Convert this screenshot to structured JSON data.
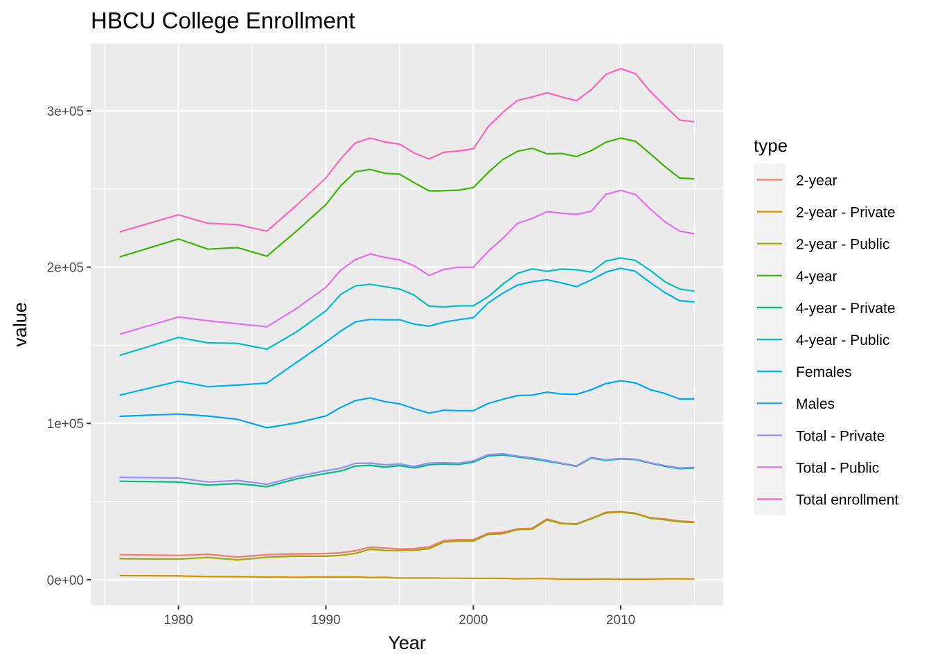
{
  "chart_data": {
    "type": "line",
    "title": "HBCU College Enrollment",
    "xlabel": "Year",
    "ylabel": "value",
    "xlim": [
      1974.05,
      2016.95
    ],
    "ylim": [
      -16500,
      343000
    ],
    "x_ticks": [
      1980,
      1990,
      2000,
      2010
    ],
    "x_tick_labels": [
      "1980",
      "1990",
      "2000",
      "2010"
    ],
    "x_minor_ticks": [
      1975,
      1985,
      1995,
      2005,
      2015
    ],
    "y_ticks": [
      0,
      100000,
      200000,
      300000
    ],
    "y_tick_labels": [
      "0e+00",
      "1e+05",
      "2e+05",
      "3e+05"
    ],
    "y_minor_ticks": [
      50000,
      150000,
      250000
    ],
    "grid": true,
    "legend": {
      "title": "type",
      "position": "right"
    },
    "x": [
      1976,
      1980,
      1982,
      1984,
      1986,
      1988,
      1990,
      1991,
      1992,
      1993,
      1994,
      1995,
      1996,
      1997,
      1998,
      1999,
      2000,
      2001,
      2002,
      2003,
      2004,
      2005,
      2006,
      2007,
      2008,
      2009,
      2010,
      2011,
      2012,
      2013,
      2014,
      2015
    ],
    "series": [
      {
        "name": "2-year",
        "color": "#F8766D",
        "values": [
          16000,
          15500,
          16200,
          14500,
          16000,
          16500,
          16700,
          17200,
          18500,
          20800,
          20200,
          19600,
          19800,
          20900,
          25000,
          25600,
          25500,
          29800,
          30200,
          32500,
          32900,
          38800,
          36100,
          35700,
          39200,
          43100,
          43500,
          42500,
          39600,
          38800,
          37500,
          37000
        ]
      },
      {
        "name": "2-year - Private",
        "color": "#D89000",
        "values": [
          2600,
          2400,
          2000,
          1900,
          1700,
          1500,
          1700,
          1700,
          1700,
          1400,
          1500,
          1000,
          1000,
          1100,
          900,
          900,
          800,
          800,
          800,
          500,
          600,
          600,
          300,
          300,
          300,
          400,
          300,
          300,
          300,
          500,
          500,
          400
        ]
      },
      {
        "name": "2-year - Public",
        "color": "#A3A500",
        "values": [
          13400,
          13100,
          14200,
          12600,
          14300,
          15000,
          15000,
          15500,
          16800,
          19400,
          18700,
          18600,
          18800,
          19800,
          24100,
          24700,
          24700,
          29000,
          29400,
          32000,
          32300,
          38200,
          35800,
          35400,
          38900,
          42700,
          43200,
          42200,
          39300,
          38300,
          37000,
          36600
        ]
      },
      {
        "name": "4-year",
        "color": "#39B600",
        "values": [
          206500,
          218000,
          211500,
          212500,
          207000,
          223000,
          240000,
          252000,
          261000,
          262500,
          260000,
          259500,
          254000,
          248800,
          248900,
          249300,
          250900,
          260500,
          268800,
          274100,
          276000,
          272500,
          272700,
          270800,
          274500,
          279900,
          282600,
          280500,
          272500,
          264300,
          257000,
          256500
        ]
      },
      {
        "name": "4-year - Private",
        "color": "#00BF7D",
        "values": [
          63000,
          62500,
          60500,
          61500,
          59500,
          64500,
          68000,
          69500,
          72700,
          73200,
          72000,
          73000,
          71500,
          73500,
          74000,
          73600,
          75200,
          79200,
          79800,
          78600,
          77300,
          75800,
          74200,
          72500,
          77800,
          76300,
          77300,
          76800,
          74500,
          72500,
          71000,
          71500
        ]
      },
      {
        "name": "4-year - Public",
        "color": "#00BFC4",
        "values": [
          143500,
          155000,
          151500,
          151200,
          147500,
          158500,
          172000,
          182500,
          188000,
          189000,
          187500,
          186000,
          182000,
          175000,
          174500,
          175200,
          175200,
          181000,
          189000,
          196000,
          198900,
          197300,
          198700,
          198300,
          196800,
          203900,
          205900,
          204200,
          197900,
          190600,
          186000,
          184600
        ]
      },
      {
        "name": "Females",
        "color": "#00B0F6",
        "values": [
          118000,
          127000,
          123500,
          124500,
          125800,
          139000,
          152000,
          159000,
          165000,
          166500,
          166300,
          166300,
          163500,
          162200,
          164800,
          166300,
          167700,
          177000,
          183300,
          188500,
          190700,
          191900,
          189900,
          187500,
          191800,
          196800,
          199300,
          197300,
          190100,
          183700,
          178500,
          177700
        ]
      },
      {
        "name": "Males",
        "color": "#00A5FF",
        "values": [
          104500,
          106000,
          104700,
          102600,
          97200,
          100300,
          104800,
          110200,
          114600,
          116300,
          113900,
          112500,
          109400,
          106600,
          108400,
          108100,
          108100,
          112700,
          115400,
          117800,
          118100,
          120000,
          118800,
          118600,
          121500,
          125500,
          127300,
          125900,
          121600,
          119100,
          115600,
          115700
        ]
      },
      {
        "name": "Total - Private",
        "color": "#9590FF",
        "values": [
          65500,
          65000,
          62500,
          63500,
          61000,
          66000,
          69700,
          71300,
          74400,
          74600,
          73500,
          74000,
          72500,
          74600,
          74900,
          74500,
          76000,
          80000,
          80600,
          79100,
          77900,
          76400,
          74500,
          72800,
          78100,
          76700,
          77600,
          77100,
          74800,
          73000,
          71500,
          71900
        ]
      },
      {
        "name": "Total - Public",
        "color": "#E76BF3",
        "values": [
          157000,
          168100,
          165700,
          163800,
          161800,
          173500,
          187000,
          198000,
          204800,
          208400,
          206200,
          204600,
          200800,
          194700,
          198600,
          199900,
          199900,
          210000,
          218400,
          228000,
          231200,
          235500,
          234500,
          233700,
          235700,
          246600,
          249100,
          246400,
          237200,
          229000,
          223000,
          221300
        ]
      },
      {
        "name": "Total enrollment",
        "color": "#FF62BC",
        "values": [
          222500,
          233500,
          228000,
          227200,
          223000,
          239500,
          257000,
          269200,
          279500,
          282600,
          280100,
          278700,
          273000,
          269200,
          273500,
          274300,
          275700,
          289800,
          299000,
          306700,
          308900,
          311600,
          308900,
          306500,
          313500,
          323300,
          327000,
          323800,
          312400,
          303100,
          294100,
          293000
        ]
      }
    ]
  }
}
